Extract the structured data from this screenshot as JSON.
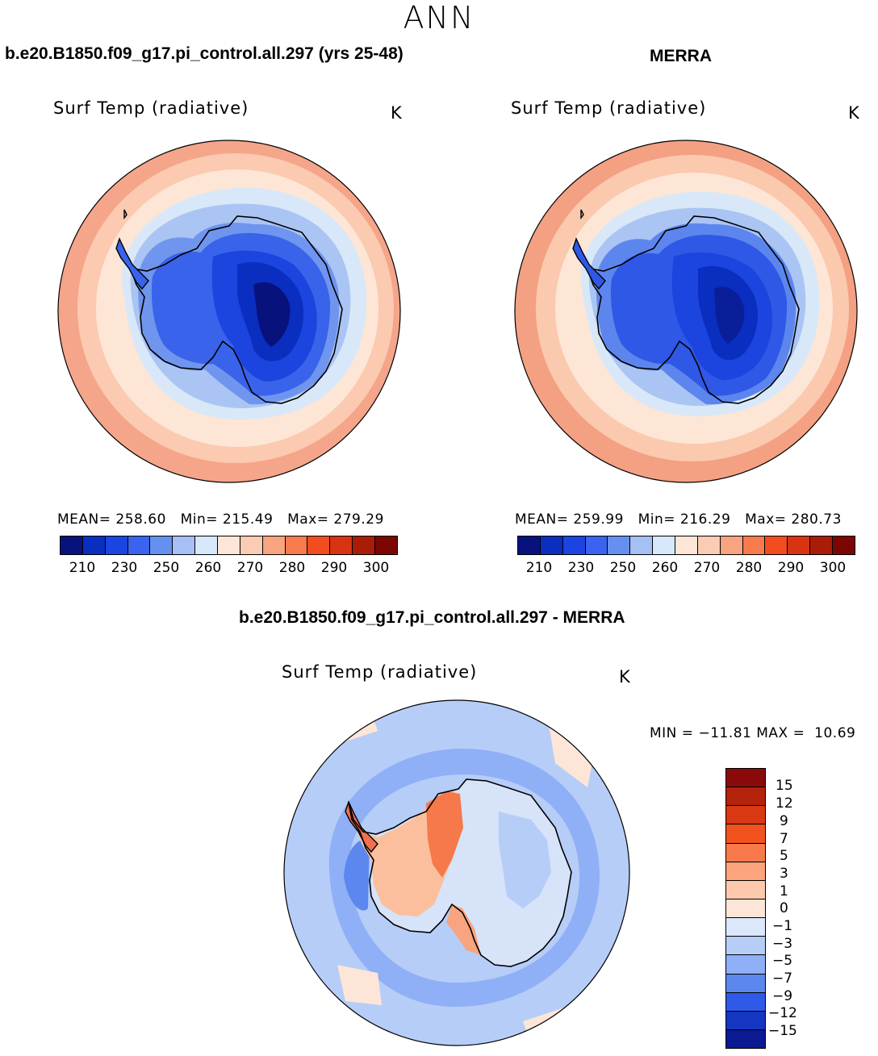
{
  "main_title": "ANN",
  "left_panel": {
    "case_title": "b.e20.B1850.f09_g17.pi_control.all.297 (yrs 25-48)",
    "plot_title": "Surf Temp (radiative)",
    "units": "K",
    "stats": "MEAN= 258.60   Min= 215.49   Max= 279.29"
  },
  "right_panel": {
    "case_title": "MERRA",
    "plot_title": "Surf Temp (radiative)",
    "units": "K",
    "stats": "MEAN= 259.99   Min= 216.29   Max= 280.73"
  },
  "diff_panel": {
    "case_title": "b.e20.B1850.f09_g17.pi_control.all.297 - MERRA",
    "plot_title": "Surf Temp (radiative)",
    "units": "K",
    "stats": "MIN = −11.81 MAX =  10.69"
  },
  "chart_data": [
    {
      "type": "heatmap",
      "title": "Surf Temp (radiative)",
      "subtitle": "b.e20.B1850.f09_g17.pi_control.all.297 (yrs 25-48)",
      "projection": "south polar stereographic",
      "units": "K",
      "mean": 258.6,
      "min": 215.49,
      "max": 279.29,
      "colorbar_ticks": [
        "210",
        "230",
        "250",
        "260",
        "270",
        "280",
        "290",
        "300"
      ],
      "colorbar_colors": [
        "#08127c",
        "#0a2ec0",
        "#1c44e0",
        "#3a63f0",
        "#6690f0",
        "#a6c0f6",
        "#d6e8fa",
        "#fde6d8",
        "#fbccb4",
        "#f8a480",
        "#f77b4c",
        "#f14d20",
        "#d83412",
        "#aa1c08",
        "#7c0604"
      ],
      "contour_levels_K": [
        210,
        250,
        260,
        265,
        270,
        275
      ]
    },
    {
      "type": "heatmap",
      "title": "Surf Temp (radiative)",
      "subtitle": "MERRA",
      "projection": "south polar stereographic",
      "units": "K",
      "mean": 259.99,
      "min": 216.29,
      "max": 280.73,
      "colorbar_ticks": [
        "210",
        "230",
        "250",
        "260",
        "270",
        "280",
        "290",
        "300"
      ],
      "colorbar_colors": [
        "#08127c",
        "#0a2ec0",
        "#1c44e0",
        "#3a63f0",
        "#6690f0",
        "#a6c0f6",
        "#d6e8fa",
        "#fde6d8",
        "#fbccb4",
        "#f8a480",
        "#f77b4c",
        "#f14d20",
        "#d83412",
        "#aa1c08",
        "#7c0604"
      ],
      "contour_levels_K": [
        210,
        250,
        260,
        265,
        270,
        275
      ]
    },
    {
      "type": "heatmap",
      "title": "Surf Temp (radiative)",
      "subtitle": "b.e20.B1850.f09_g17.pi_control.all.297 - MERRA",
      "projection": "south polar stereographic",
      "units": "K",
      "min": -11.81,
      "max": 10.69,
      "colorbar_ticks": [
        "15",
        "12",
        "9",
        "7",
        "5",
        "3",
        "1",
        "0",
        "−1",
        "−3",
        "−5",
        "−7",
        "−9",
        "−12",
        "−15"
      ],
      "colorbar_colors": [
        "#8a0a0a",
        "#b3220a",
        "#d83812",
        "#f2531e",
        "#f87a4a",
        "#fba47e",
        "#fdc9ae",
        "#fde6d8",
        "#dbe8fb",
        "#b6cdf8",
        "#8fb0f6",
        "#5c87ef",
        "#2f5ae8",
        "#1436c0",
        "#0b1a92"
      ]
    }
  ]
}
